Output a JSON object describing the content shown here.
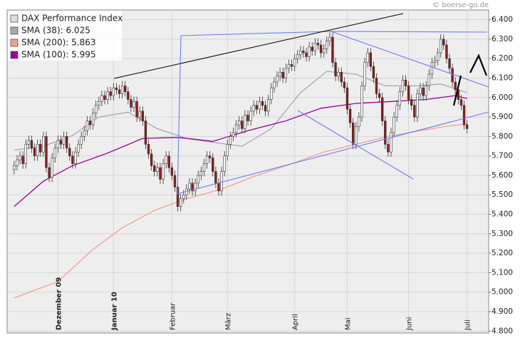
{
  "chart_data": {
    "type": "candlestick",
    "watermark": "© boerse-go.de",
    "grid": true,
    "xlim": [
      -2.4,
      162.4
    ],
    "xticks": [
      {
        "value": 15,
        "label": "Dezember 09"
      },
      {
        "value": 34,
        "label": "Januar 10"
      },
      {
        "value": 54,
        "label": "Februar"
      },
      {
        "value": 73,
        "label": "März"
      },
      {
        "value": 96,
        "label": "April"
      },
      {
        "value": 114,
        "label": "Mai"
      },
      {
        "value": 135,
        "label": "Juni"
      },
      {
        "value": 155,
        "label": "Juli"
      }
    ],
    "ylim": [
      4790,
      6450
    ],
    "yticks": [
      {
        "value": 4800,
        "label": "4.800"
      },
      {
        "value": 4900,
        "label": "4.900"
      },
      {
        "value": 5000,
        "label": "5.000"
      },
      {
        "value": 5100,
        "label": "5.100"
      },
      {
        "value": 5200,
        "label": "5.200"
      },
      {
        "value": 5300,
        "label": "5.300"
      },
      {
        "value": 5400,
        "label": "5.400"
      },
      {
        "value": 5500,
        "label": "5.500"
      },
      {
        "value": 5600,
        "label": "5.600"
      },
      {
        "value": 5700,
        "label": "5.700"
      },
      {
        "value": 5800,
        "label": "5.800"
      },
      {
        "value": 5900,
        "label": "5.900"
      },
      {
        "value": 6000,
        "label": "6.000"
      },
      {
        "value": 6100,
        "label": "6.100"
      },
      {
        "value": 6200,
        "label": "6.200"
      },
      {
        "value": 6300,
        "label": "6.300"
      },
      {
        "value": 6400,
        "label": "6.400"
      }
    ],
    "x": [
      0,
      1,
      2,
      3,
      4,
      5,
      6,
      7,
      8,
      9,
      10,
      11,
      12,
      13,
      14,
      15,
      16,
      17,
      18,
      19,
      20,
      21,
      22,
      23,
      24,
      25,
      26,
      27,
      28,
      29,
      30,
      31,
      32,
      33,
      34,
      35,
      36,
      37,
      38,
      39,
      40,
      41,
      42,
      43,
      44,
      45,
      46,
      47,
      48,
      49,
      50,
      51,
      52,
      53,
      54,
      55,
      56,
      57,
      58,
      59,
      60,
      61,
      62,
      63,
      64,
      65,
      66,
      67,
      68,
      69,
      70,
      71,
      72,
      73,
      74,
      75,
      76,
      77,
      78,
      79,
      80,
      81,
      82,
      83,
      84,
      85,
      86,
      87,
      88,
      89,
      90,
      91,
      92,
      93,
      94,
      95,
      96,
      97,
      98,
      99,
      100,
      101,
      102,
      103,
      104,
      105,
      106,
      107,
      108,
      109,
      110,
      111,
      112,
      113,
      114,
      115,
      116,
      117,
      118,
      119,
      120,
      121,
      122,
      123,
      124,
      125,
      126,
      127,
      128,
      129,
      130,
      131,
      132,
      133,
      134,
      135,
      136,
      137,
      138,
      139,
      140,
      141,
      142,
      143,
      144,
      145,
      146,
      147,
      148,
      149,
      150,
      151,
      152,
      153,
      154,
      155
    ],
    "series": [
      {
        "name": "DAX Performance Index",
        "type": "candlestick",
        "color": "#dddddd",
        "up_color": "#ffffff",
        "down_color": "#8b1a1a",
        "open": [
          5630,
          5650,
          5680,
          5700,
          5660,
          5760,
          5780,
          5740,
          5700,
          5760,
          5720,
          5800,
          5640,
          5590,
          5690,
          5740,
          5780,
          5760,
          5800,
          5740,
          5700,
          5660,
          5720,
          5760,
          5800,
          5830,
          5880,
          5860,
          5920,
          5960,
          5980,
          6010,
          5990,
          6030,
          6010,
          6050,
          6040,
          6020,
          6060,
          6030,
          5990,
          5950,
          5980,
          5900,
          5930,
          5880,
          5760,
          5710,
          5650,
          5620,
          5640,
          5580,
          5660,
          5700,
          5640,
          5600,
          5540,
          5440,
          5480,
          5500,
          5530,
          5560,
          5520,
          5560,
          5600,
          5620,
          5660,
          5700,
          5690,
          5620,
          5560,
          5520,
          5620,
          5700,
          5760,
          5800,
          5820,
          5860,
          5880,
          5840,
          5910,
          5880,
          5930,
          5960,
          5940,
          5980,
          5960,
          5930,
          5990,
          6050,
          6080,
          6110,
          6130,
          6100,
          6150,
          6170,
          6160,
          6200,
          6220,
          6240,
          6230,
          6210,
          6260,
          6240,
          6280,
          6270,
          6230,
          6250,
          6290,
          6310,
          6180,
          6110,
          6130,
          6080,
          6050,
          5940,
          5870,
          5760,
          5850,
          5900,
          6060,
          6180,
          6230,
          6160,
          6100,
          6020,
          6000,
          5880,
          5760,
          5720,
          5820,
          5900,
          5960,
          6030,
          6090,
          6060,
          5990,
          5960,
          5900,
          6020,
          6050,
          6010,
          6060,
          6120,
          6180,
          6190,
          6230,
          6300,
          6270,
          6200,
          6150,
          6080,
          6040,
          5990,
          5960,
          5860
        ],
        "high": [
          5675,
          5705,
          5725,
          5725,
          5785,
          5805,
          5805,
          5765,
          5785,
          5785,
          5825,
          5825,
          5665,
          5715,
          5765,
          5805,
          5805,
          5825,
          5825,
          5765,
          5725,
          5745,
          5785,
          5825,
          5855,
          5905,
          5905,
          5945,
          5985,
          6005,
          6035,
          6035,
          6055,
          6055,
          6075,
          6075,
          6065,
          6085,
          6085,
          6055,
          6015,
          6005,
          6005,
          5955,
          5955,
          5905,
          5785,
          5735,
          5675,
          5665,
          5665,
          5685,
          5725,
          5725,
          5665,
          5625,
          5565,
          5505,
          5525,
          5555,
          5585,
          5585,
          5585,
          5625,
          5645,
          5685,
          5725,
          5725,
          5715,
          5645,
          5585,
          5645,
          5725,
          5785,
          5825,
          5845,
          5885,
          5905,
          5905,
          5935,
          5935,
          5955,
          5985,
          5985,
          6005,
          6005,
          5985,
          6015,
          6075,
          6105,
          6135,
          6155,
          6155,
          6175,
          6195,
          6195,
          6225,
          6245,
          6265,
          6265,
          6255,
          6285,
          6285,
          6305,
          6305,
          6295,
          6275,
          6315,
          6335,
          6335,
          6205,
          6155,
          6155,
          6105,
          6075,
          5965,
          5895,
          5875,
          5925,
          6085,
          6205,
          6255,
          6255,
          6185,
          6125,
          6045,
          6025,
          5905,
          5785,
          5845,
          5925,
          5985,
          6055,
          6115,
          6115,
          6085,
          6015,
          5985,
          6045,
          6075,
          6075,
          6085,
          6145,
          6205,
          6215,
          6255,
          6325,
          6325,
          6295,
          6225,
          6175,
          6105,
          6065,
          6015,
          5985,
          5885
        ],
        "low": [
          5605,
          5625,
          5655,
          5635,
          5635,
          5735,
          5715,
          5675,
          5675,
          5695,
          5695,
          5615,
          5565,
          5565,
          5665,
          5715,
          5735,
          5735,
          5715,
          5675,
          5635,
          5635,
          5695,
          5735,
          5775,
          5805,
          5835,
          5835,
          5895,
          5935,
          5955,
          5965,
          5965,
          5985,
          5985,
          6015,
          5995,
          5995,
          6005,
          5965,
          5925,
          5925,
          5875,
          5875,
          5855,
          5735,
          5685,
          5625,
          5595,
          5595,
          5555,
          5555,
          5635,
          5615,
          5575,
          5515,
          5415,
          5415,
          5455,
          5475,
          5505,
          5495,
          5495,
          5535,
          5575,
          5595,
          5635,
          5665,
          5595,
          5535,
          5495,
          5495,
          5595,
          5675,
          5735,
          5775,
          5795,
          5835,
          5815,
          5815,
          5855,
          5855,
          5905,
          5915,
          5915,
          5935,
          5905,
          5905,
          5965,
          6025,
          6055,
          6085,
          6075,
          6075,
          6125,
          6135,
          6135,
          6175,
          6195,
          6205,
          6185,
          6185,
          6215,
          6215,
          6245,
          6205,
          6205,
          6225,
          6265,
          6155,
          6085,
          6085,
          6055,
          6025,
          5915,
          5845,
          5735,
          5735,
          5825,
          5875,
          6035,
          6155,
          6135,
          6075,
          5995,
          5975,
          5855,
          5735,
          5695,
          5695,
          5795,
          5875,
          5935,
          6005,
          6035,
          5965,
          5935,
          5875,
          5875,
          5995,
          5985,
          5985,
          6035,
          6095,
          6155,
          6165,
          6205,
          6245,
          6175,
          6125,
          6055,
          6015,
          5965,
          5935,
          5835,
          5815
        ],
        "close": [
          5650,
          5680,
          5700,
          5660,
          5760,
          5780,
          5740,
          5700,
          5760,
          5720,
          5800,
          5640,
          5590,
          5690,
          5740,
          5780,
          5760,
          5800,
          5740,
          5700,
          5660,
          5720,
          5760,
          5800,
          5830,
          5880,
          5860,
          5920,
          5960,
          5980,
          6010,
          5990,
          6030,
          6010,
          6050,
          6040,
          6020,
          6060,
          6030,
          5990,
          5950,
          5980,
          5900,
          5930,
          5880,
          5760,
          5710,
          5650,
          5620,
          5640,
          5580,
          5660,
          5700,
          5640,
          5600,
          5540,
          5440,
          5480,
          5500,
          5530,
          5560,
          5520,
          5560,
          5600,
          5620,
          5660,
          5700,
          5690,
          5620,
          5560,
          5520,
          5620,
          5700,
          5760,
          5800,
          5820,
          5860,
          5880,
          5840,
          5910,
          5880,
          5930,
          5960,
          5940,
          5980,
          5960,
          5930,
          5990,
          6050,
          6080,
          6110,
          6130,
          6100,
          6150,
          6170,
          6160,
          6200,
          6220,
          6240,
          6230,
          6210,
          6260,
          6240,
          6280,
          6270,
          6230,
          6250,
          6290,
          6310,
          6180,
          6110,
          6130,
          6080,
          6050,
          5940,
          5870,
          5760,
          5850,
          5900,
          6060,
          6180,
          6230,
          6160,
          6100,
          6020,
          6000,
          5880,
          5760,
          5720,
          5820,
          5900,
          5960,
          6030,
          6090,
          6060,
          5990,
          5960,
          5900,
          6020,
          6050,
          6010,
          6060,
          6120,
          6180,
          6190,
          6230,
          6300,
          6270,
          6200,
          6150,
          6080,
          6040,
          5990,
          5960,
          5860,
          5840
        ]
      },
      {
        "name": "SMA (38): 6.025",
        "type": "line",
        "color": "#a8a8a8",
        "x": [
          0,
          10,
          20,
          29,
          39,
          49,
          59,
          68,
          78,
          88,
          98,
          107,
          117,
          127,
          139,
          146,
          155
        ],
        "values": [
          5730,
          5750,
          5805,
          5900,
          5925,
          5840,
          5790,
          5770,
          5750,
          5840,
          6025,
          6135,
          6120,
          6060,
          6060,
          6070,
          6025
        ]
      },
      {
        "name": "SMA (200): 5.863",
        "type": "line",
        "color": "#f4a090",
        "x": [
          0,
          15,
          27,
          37,
          48,
          59,
          71,
          83,
          95,
          106,
          117,
          128,
          139,
          149,
          155
        ],
        "values": [
          4970,
          5055,
          5220,
          5330,
          5420,
          5480,
          5530,
          5600,
          5660,
          5720,
          5760,
          5800,
          5830,
          5855,
          5863
        ]
      },
      {
        "name": "SMA (100): 5.995",
        "type": "line",
        "color": "#990099",
        "x": [
          0,
          10,
          20,
          32,
          44,
          56,
          68,
          80,
          93,
          105,
          117,
          129,
          141,
          151,
          155
        ],
        "values": [
          5440,
          5570,
          5650,
          5715,
          5790,
          5795,
          5775,
          5830,
          5880,
          5945,
          5970,
          5980,
          5990,
          6010,
          5995
        ]
      }
    ]
  }
}
